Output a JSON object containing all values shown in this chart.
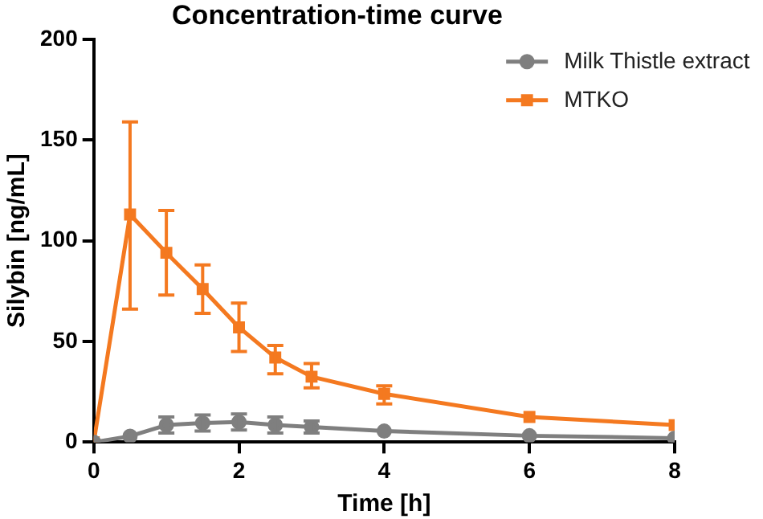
{
  "chart_data": {
    "type": "line",
    "title": "Concentration-time curve",
    "xlabel": "Time [h]",
    "ylabel": "Silybin [ng/mL]",
    "x": [
      0,
      0.5,
      1,
      1.5,
      2,
      2.5,
      3,
      4,
      6,
      8
    ],
    "series": [
      {
        "name": "Milk Thistle extract",
        "color": "#7f7f7f",
        "marker": "circle",
        "values": [
          0,
          3,
          8.5,
          9.5,
          10,
          8.5,
          7.5,
          5.5,
          3.2,
          2
        ],
        "errors": [
          null,
          null,
          4,
          4,
          4,
          4,
          3,
          null,
          null,
          null
        ]
      },
      {
        "name": "MTKO",
        "color": "#f47920",
        "marker": "square",
        "values": [
          0,
          113,
          94,
          76,
          57,
          42,
          32.5,
          24,
          12.5,
          8.5
        ],
        "errors": [
          null,
          [
            66,
            159
          ],
          [
            73,
            115
          ],
          [
            64,
            88
          ],
          [
            45,
            69
          ],
          [
            34,
            48
          ],
          [
            27,
            39
          ],
          [
            19,
            28
          ],
          null,
          null
        ]
      }
    ],
    "xlim": [
      0,
      8
    ],
    "xticks": [
      0,
      2,
      4,
      6,
      8
    ],
    "ylim": [
      0,
      200
    ],
    "yticks": [
      0,
      50,
      100,
      150,
      200
    ],
    "grid": false,
    "legend": "top right",
    "line_style": "solid"
  }
}
